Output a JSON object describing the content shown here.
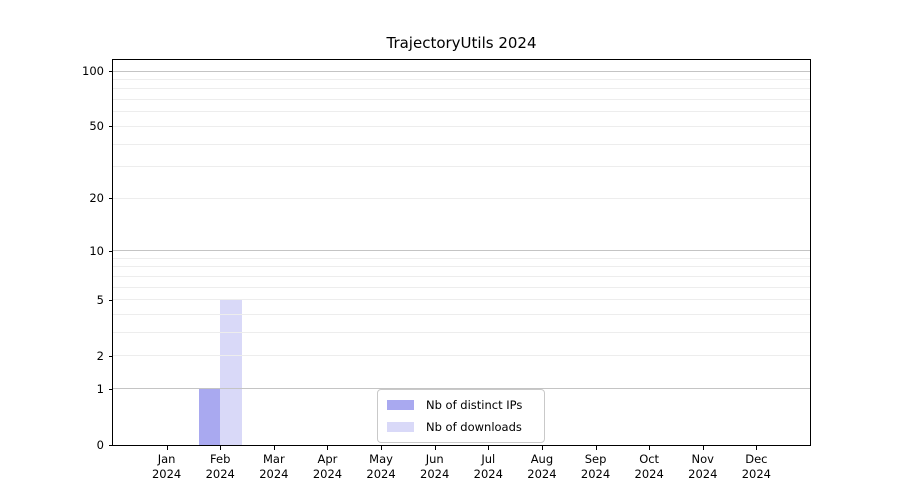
{
  "chart_data": {
    "type": "bar",
    "title": "TrajectoryUtils 2024",
    "categories": [
      "Jan 2024",
      "Feb 2024",
      "Mar 2024",
      "Apr 2024",
      "May 2024",
      "Jun 2024",
      "Jul 2024",
      "Aug 2024",
      "Sep 2024",
      "Oct 2024",
      "Nov 2024",
      "Dec 2024"
    ],
    "series": [
      {
        "name": "Nb of distinct IPs",
        "color": "#a9a9f0",
        "values": [
          0,
          1,
          0,
          0,
          0,
          0,
          0,
          0,
          0,
          0,
          0,
          0
        ]
      },
      {
        "name": "Nb of downloads",
        "color": "#d9d9f8",
        "values": [
          0,
          5,
          0,
          0,
          0,
          0,
          0,
          0,
          0,
          0,
          0,
          0
        ]
      }
    ],
    "xlabel": "",
    "ylabel": "",
    "yscale": "log1p",
    "ylim": [
      0,
      115
    ],
    "y_ticks": [
      0,
      1,
      2,
      5,
      10,
      20,
      50,
      100
    ],
    "y_major_gridlines": [
      1,
      10,
      100
    ],
    "y_minor_gridlines": [
      2,
      3,
      4,
      5,
      6,
      7,
      8,
      9,
      20,
      30,
      40,
      50,
      60,
      70,
      80,
      90
    ],
    "grid": true,
    "legend_position": "lower center",
    "colors": {
      "grid_major": "#c4c4c4",
      "grid_minor": "#ededed",
      "axis": "#000000",
      "text": "#000000",
      "background": "#ffffff"
    }
  },
  "legend": {
    "entries": [
      {
        "label": "Nb of distinct IPs"
      },
      {
        "label": "Nb of downloads"
      }
    ]
  }
}
